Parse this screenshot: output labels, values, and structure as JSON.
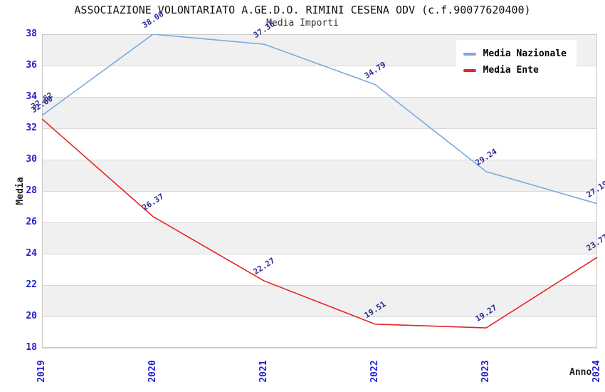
{
  "chart_data": {
    "type": "line",
    "title": "ASSOCIAZIONE VOLONTARIATO A.GE.D.O. RIMINI CESENA ODV (c.f.90077620400)",
    "subtitle": "Media Importi",
    "xlabel": "Anno",
    "ylabel": "Media",
    "categories": [
      "2019",
      "2020",
      "2021",
      "2022",
      "2023",
      "2024"
    ],
    "series": [
      {
        "name": "Media Nazionale",
        "color": "#79abdf",
        "values": [
          32.82,
          38.0,
          37.36,
          34.79,
          29.24,
          27.19
        ]
      },
      {
        "name": "Media Ente",
        "color": "#e62424",
        "values": [
          32.6,
          26.37,
          22.27,
          19.51,
          19.27,
          23.77
        ]
      }
    ],
    "ylim": [
      18,
      38
    ],
    "ytick_step": 2,
    "grid": true,
    "legend_position": "top-right",
    "colors": {
      "tick_label": "#2222cc",
      "data_label": "#2a2a90",
      "band": "#f0f0f0",
      "gridline": "#d9d9d9",
      "border": "#c9c9c9"
    }
  }
}
